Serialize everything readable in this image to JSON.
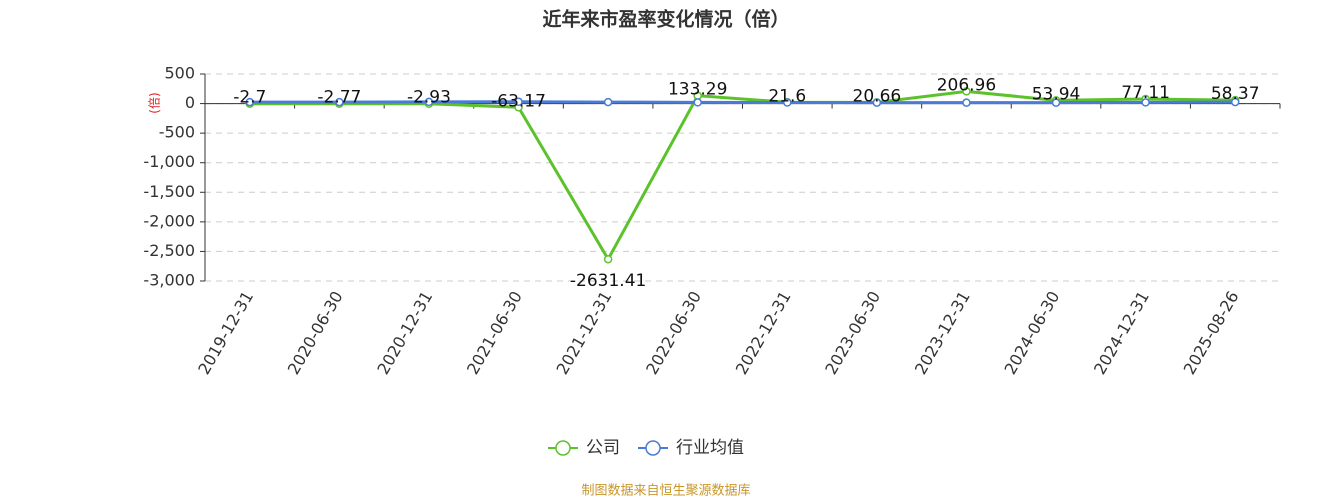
{
  "chart_data": {
    "type": "line",
    "title": "近年来市盈率变化情况（倍）",
    "y_label": "(倍)",
    "categories": [
      "2019-12-31",
      "2020-06-30",
      "2020-12-31",
      "2021-06-30",
      "2021-12-31",
      "2022-06-30",
      "2022-12-31",
      "2023-06-30",
      "2023-12-31",
      "2024-06-30",
      "2024-12-31",
      "2025-08-26"
    ],
    "series": [
      {
        "name": "公司",
        "color": "#5cc22c",
        "values": [
          -2.7,
          -2.77,
          -2.93,
          -63.17,
          -2631.41,
          133.29,
          21.6,
          20.66,
          206.96,
          53.94,
          77.11,
          58.37
        ]
      },
      {
        "name": "行业均值",
        "color": "#4a7bd6",
        "values": [
          25,
          25,
          28,
          30,
          25,
          20,
          18,
          15,
          15,
          15,
          20,
          25
        ]
      }
    ],
    "ylim": [
      -3000,
      500
    ],
    "yticks": [
      500,
      0,
      -500,
      {
        "value": -1000,
        "label": "-1,000"
      },
      {
        "value": -1500,
        "label": "-1,500"
      },
      {
        "value": -2000,
        "label": "-2,000"
      },
      {
        "value": -2500,
        "label": "-2,500"
      },
      {
        "value": -3000,
        "label": "-3,000"
      }
    ],
    "grid": true,
    "legend": "bottom",
    "source": "制图数据来自恒生聚源数据库"
  }
}
